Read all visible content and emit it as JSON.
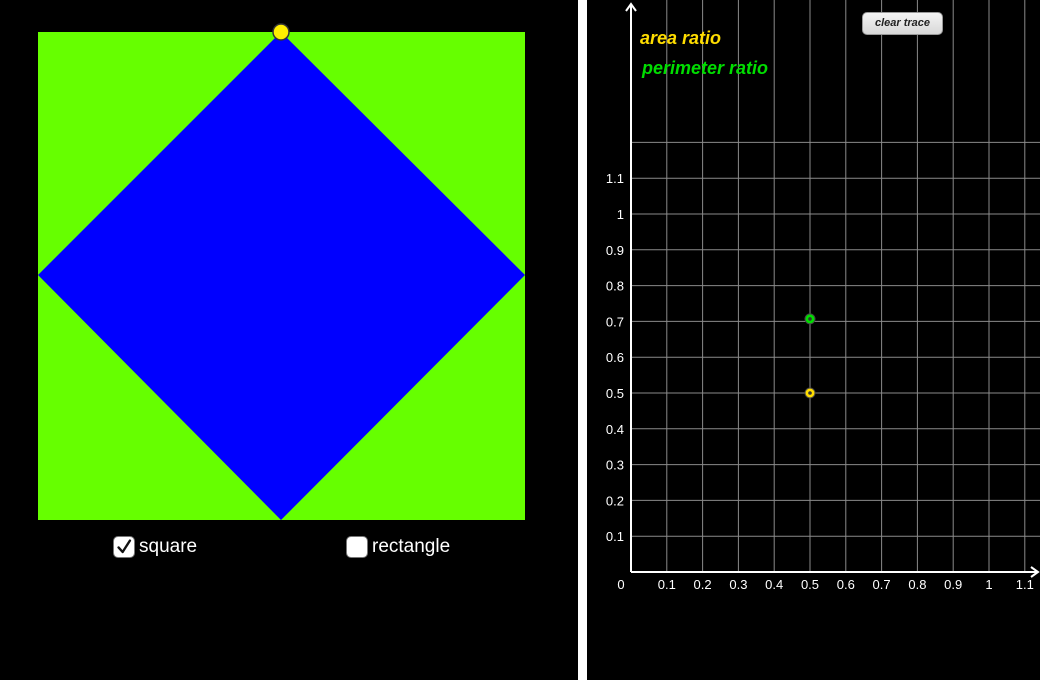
{
  "shapes": {
    "outer_color": "#66ff00",
    "inner_color": "#0000ff",
    "handle_color": "#ffee00"
  },
  "controls": {
    "square": {
      "label": "square",
      "checked": true
    },
    "rectangle": {
      "label": "rectangle",
      "checked": false
    }
  },
  "graph": {
    "clear_trace_label": "clear trace",
    "legend": {
      "area": {
        "label": "area ratio",
        "color": "#ffdd00"
      },
      "perimeter": {
        "label": "perimeter ratio",
        "color": "#00dd00"
      }
    },
    "origin_label": "0",
    "x_tick_labels": [
      "0.1",
      "0.2",
      "0.3",
      "0.4",
      "0.5",
      "0.6",
      "0.7",
      "0.8",
      "0.9",
      "1",
      "1.1"
    ],
    "y_tick_labels": [
      "0.1",
      "0.2",
      "0.3",
      "0.4",
      "0.5",
      "0.6",
      "0.7",
      "0.8",
      "0.9",
      "1",
      "1.1"
    ],
    "points": [
      {
        "series": "area",
        "x": 0.5,
        "y": 0.5,
        "color": "#ffdd00"
      },
      {
        "series": "perimeter",
        "x": 0.5,
        "y": 0.707,
        "color": "#00dd00"
      }
    ]
  }
}
